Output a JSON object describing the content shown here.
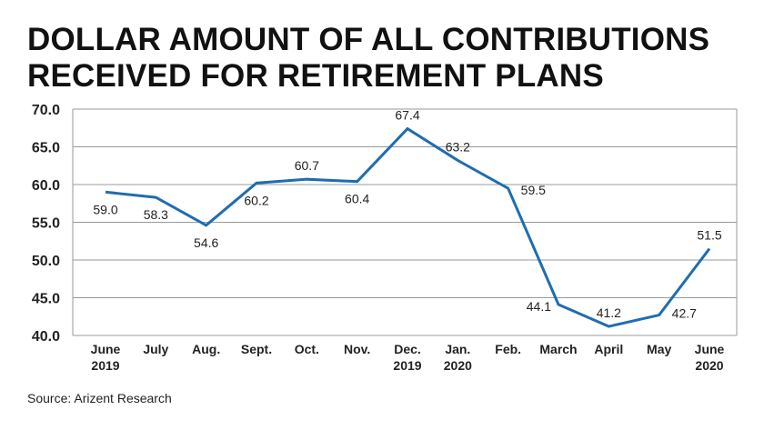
{
  "title_lines": [
    "DOLLAR AMOUNT OF ALL CONTRIBUTIONS",
    "RECEIVED FOR RETIREMENT PLANS"
  ],
  "source": "Source: Arizent Research",
  "line_color": "#1f6db1",
  "chart_data": {
    "type": "line",
    "title": "DOLLAR AMOUNT OF ALL CONTRIBUTIONS RECEIVED FOR RETIREMENT PLANS",
    "categories": [
      [
        "June",
        "2019"
      ],
      [
        "July"
      ],
      [
        "Aug."
      ],
      [
        "Sept."
      ],
      [
        "Oct."
      ],
      [
        "Nov."
      ],
      [
        "Dec.",
        "2019"
      ],
      [
        "Jan.",
        "2020"
      ],
      [
        "Feb."
      ],
      [
        "March"
      ],
      [
        "April"
      ],
      [
        "May"
      ],
      [
        "June",
        "2020"
      ]
    ],
    "values": [
      59.0,
      58.3,
      54.6,
      60.2,
      60.7,
      60.4,
      67.4,
      63.2,
      59.5,
      44.1,
      41.2,
      42.7,
      51.5
    ],
    "value_labels": [
      "59.0",
      "58.3",
      "54.6",
      "60.2",
      "60.7",
      "60.4",
      "67.4",
      "63.2",
      "59.5",
      "44.1",
      "41.2",
      "42.7",
      "51.5"
    ],
    "yticks": [
      "40.0",
      "45.0",
      "50.0",
      "55.0",
      "60.0",
      "65.0",
      "70.0"
    ],
    "ylim": [
      40,
      70
    ],
    "grid": true
  }
}
